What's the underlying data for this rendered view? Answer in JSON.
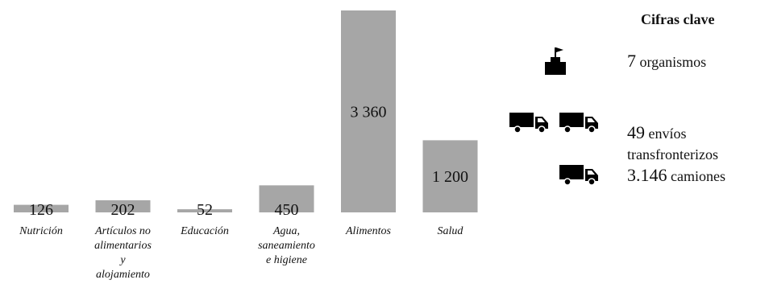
{
  "chart_data": {
    "type": "bar",
    "categories": [
      [
        "Nutrición"
      ],
      [
        "Artículos no",
        "alimentarios",
        "y",
        "alojamiento"
      ],
      [
        "Educación"
      ],
      [
        "Agua,",
        "saneamiento",
        "e higiene"
      ],
      [
        "Alimentos"
      ],
      [
        "Salud"
      ]
    ],
    "values": [
      126,
      202,
      52,
      450,
      3360,
      1200
    ],
    "value_labels": [
      "126",
      "202",
      "52",
      "450",
      "3 360",
      "1 200"
    ],
    "title": "",
    "xlabel": "",
    "ylabel": "",
    "ylim": [
      0,
      3360
    ],
    "bar_color": "#a6a6a6",
    "grid": false,
    "legend": "none"
  },
  "key_figures": {
    "title": "Cifras clave",
    "items": [
      {
        "number": "7",
        "label": "organismos",
        "icon": "building-flag-icon"
      },
      {
        "number": "49",
        "label": "envíos",
        "label2": "transfronterizos",
        "icon": "truck-icon"
      },
      {
        "number": "3.146",
        "label": "camiones",
        "icon": "truck-icon"
      }
    ]
  }
}
